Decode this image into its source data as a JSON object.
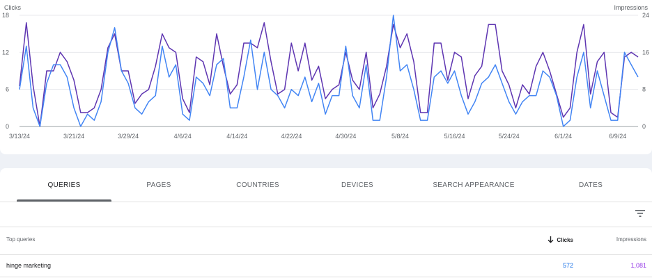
{
  "chart": {
    "left_axis_label": "Clicks",
    "right_axis_label": "Impressions",
    "colors": {
      "clicks": "#4285f4",
      "impressions": "#5e35b1"
    }
  },
  "chart_data": {
    "type": "line",
    "xlabel": "",
    "x_tick_labels": [
      "3/13/24",
      "3/21/24",
      "3/29/24",
      "4/6/24",
      "4/14/24",
      "4/22/24",
      "4/30/24",
      "5/8/24",
      "5/16/24",
      "5/24/24",
      "6/1/24",
      "6/9/24"
    ],
    "left_axis": {
      "label": "Clicks",
      "ticks": [
        0,
        6,
        12,
        18
      ],
      "ylim": [
        0,
        18
      ]
    },
    "right_axis": {
      "label": "Impressions",
      "ticks": [
        0,
        8,
        16,
        24
      ],
      "ylim": [
        0,
        24
      ]
    },
    "grid": true,
    "series": [
      {
        "name": "Clicks",
        "axis": "left",
        "color": "#4285f4",
        "values": [
          6,
          13,
          3,
          0,
          7,
          10,
          10,
          8,
          3,
          0,
          2,
          1,
          4,
          12,
          16,
          9,
          7,
          3,
          2,
          4,
          5,
          13,
          8,
          10,
          2,
          1,
          8,
          7,
          5,
          10,
          11,
          3,
          3,
          8,
          14,
          6,
          12,
          6,
          5,
          3,
          6,
          5,
          8,
          4,
          7,
          2,
          5,
          5,
          13,
          5,
          3,
          10,
          1,
          1,
          8,
          18,
          9,
          10,
          6,
          1,
          1,
          8,
          9,
          7,
          9,
          5,
          2,
          4,
          7,
          8,
          10,
          7,
          4,
          2,
          4,
          5,
          5,
          9,
          8,
          5,
          0,
          1,
          8,
          12,
          3,
          9,
          5,
          1,
          1,
          12,
          10,
          8
        ]
      },
      {
        "name": "Impressions",
        "axis": "right",
        "color": "#5e35b1",
        "values": [
          8.7,
          22.4,
          8.8,
          0,
          12,
          12,
          16,
          14,
          10,
          3,
          3,
          4,
          8,
          17,
          20,
          12,
          12,
          5,
          7,
          8,
          13,
          20,
          17,
          16,
          6,
          3,
          15,
          14,
          9,
          20,
          13,
          7,
          9,
          18,
          18,
          17,
          22.4,
          14,
          7,
          8,
          18,
          12,
          18,
          10,
          13,
          6,
          8,
          9,
          16,
          10,
          8,
          16,
          4,
          7,
          13,
          22,
          17,
          20,
          14,
          3,
          3,
          18,
          18,
          10,
          16,
          15,
          6,
          11,
          13,
          22,
          22,
          12,
          9,
          4,
          9,
          7,
          13,
          16,
          12,
          7,
          2,
          4,
          16,
          22,
          7,
          14,
          16,
          3,
          2,
          15,
          16,
          15
        ]
      }
    ]
  },
  "tabs": [
    "QUERIES",
    "PAGES",
    "COUNTRIES",
    "DEVICES",
    "SEARCH APPEARANCE",
    "DATES"
  ],
  "table": {
    "headers": {
      "query": "Top queries",
      "clicks": "Clicks",
      "impressions": "Impressions"
    },
    "rows": [
      {
        "query": "hinge marketing",
        "clicks": "572",
        "impressions": "1,081"
      }
    ]
  }
}
